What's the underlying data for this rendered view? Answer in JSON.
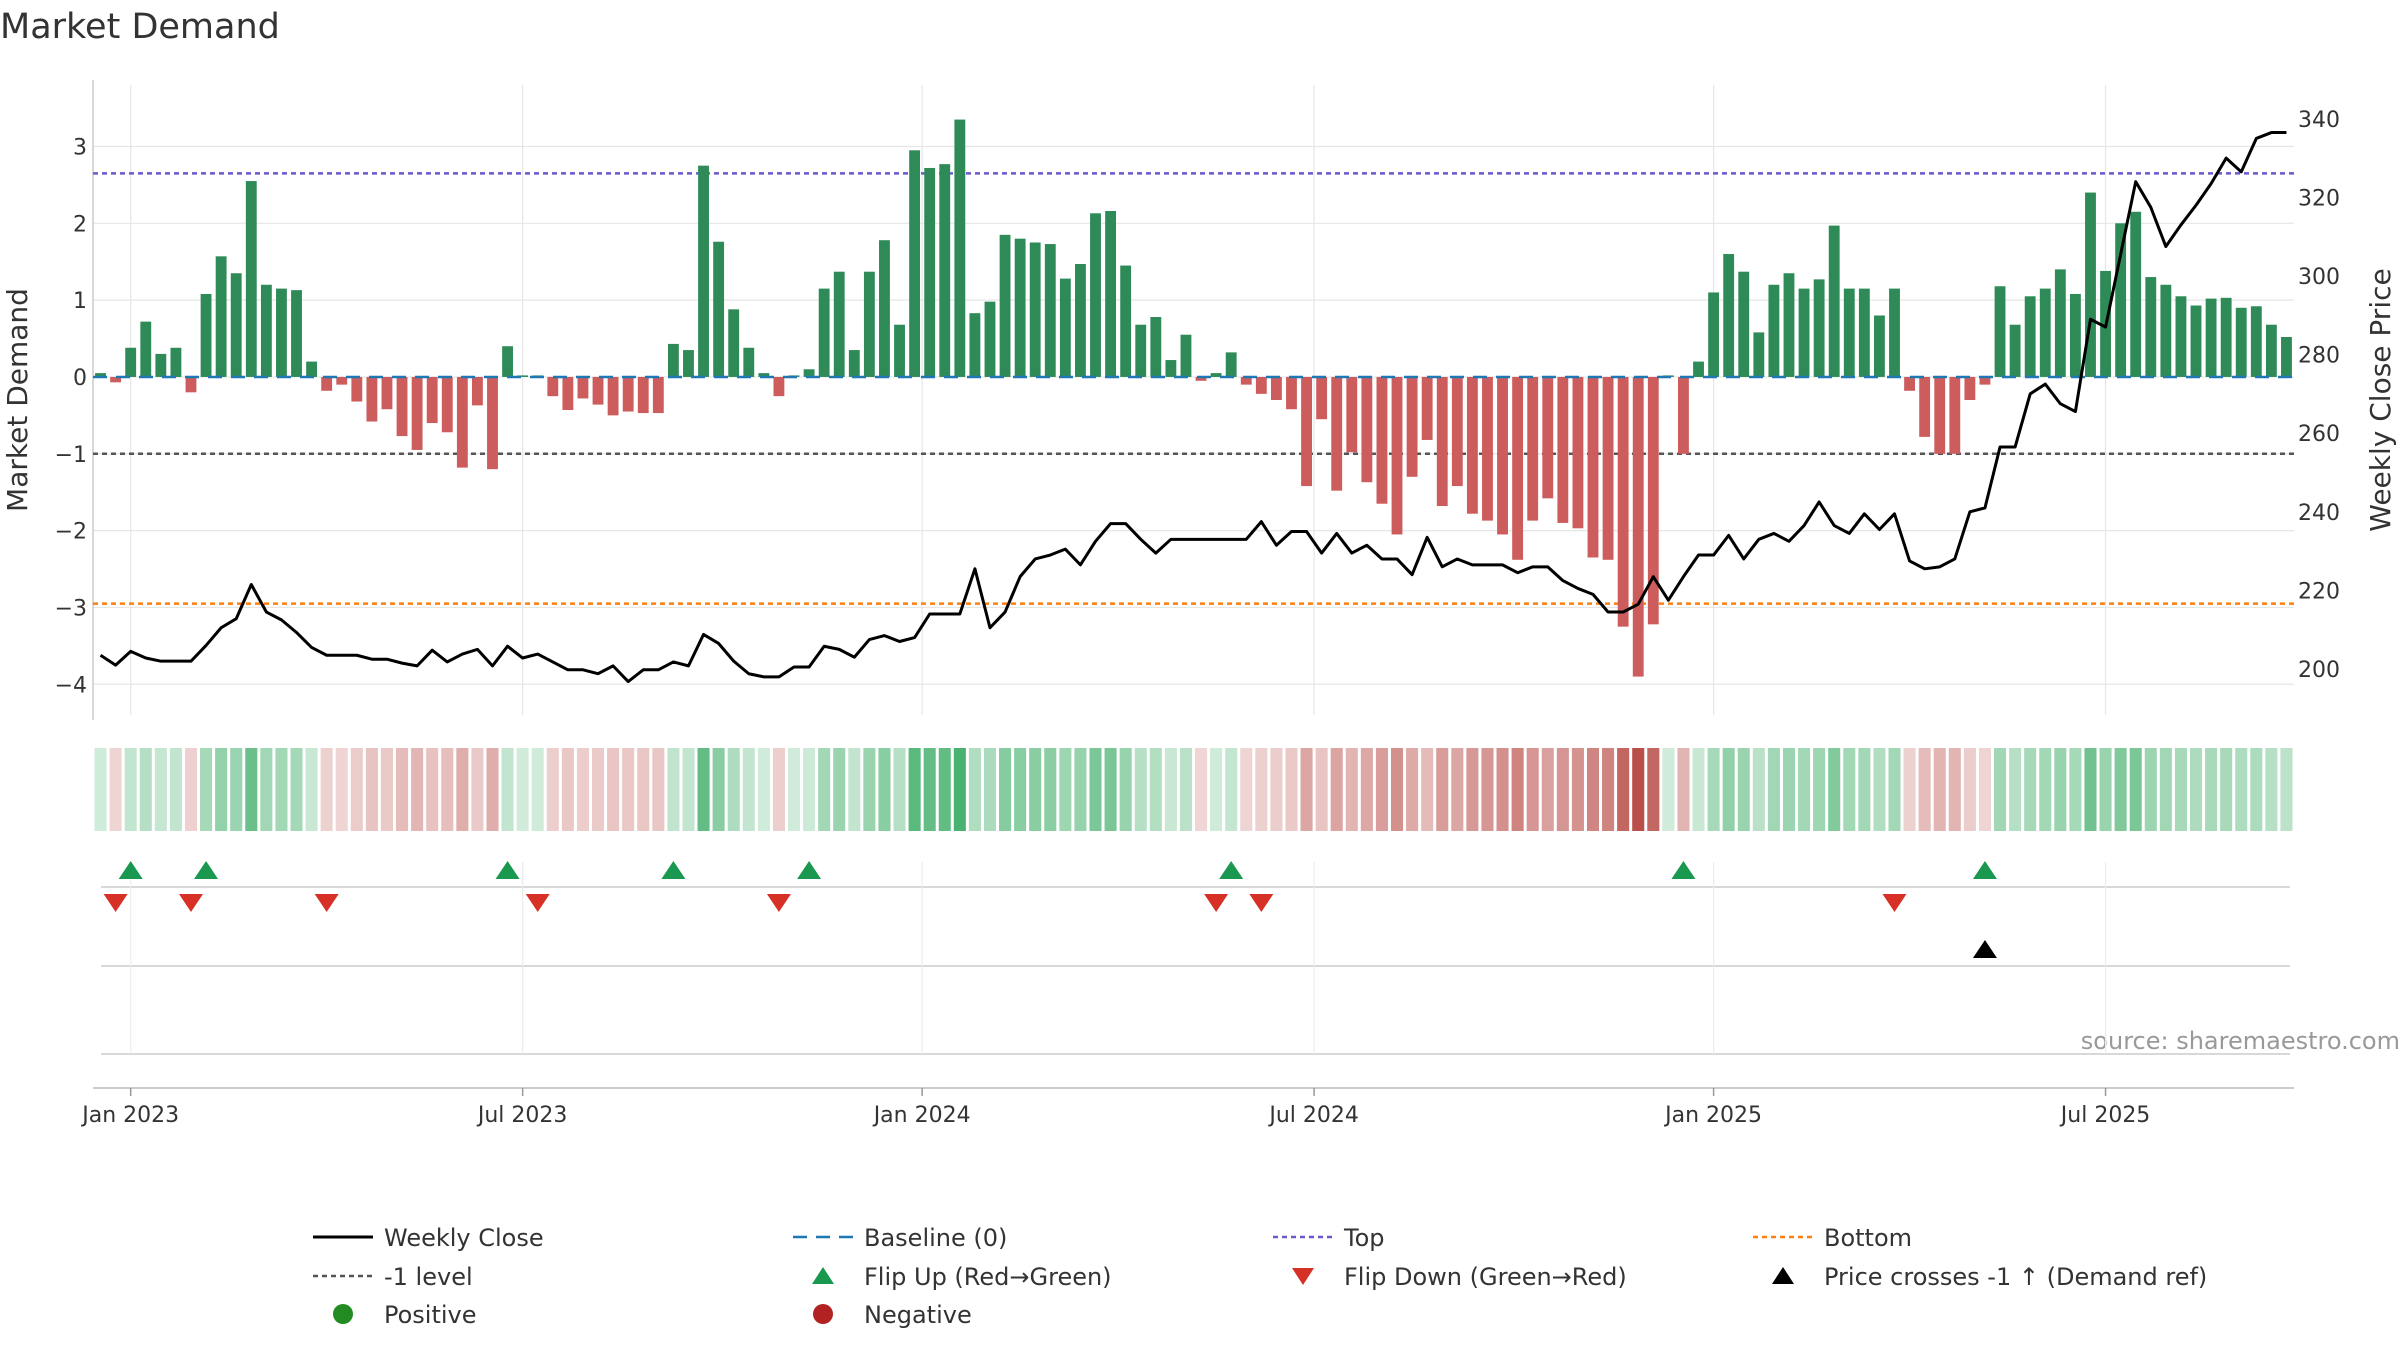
{
  "chart_data": {
    "type": "bar",
    "title": "Market Demand",
    "ylabel_left": "Market Demand",
    "ylabel_right": "Weekly Close Price",
    "source": "source: sharemaestro.com",
    "ylim_left": [
      -4.4,
      3.8
    ],
    "ylim_right": [
      188.3,
      348.6
    ],
    "yticks_left": [
      {
        "v": 3,
        "label": "3"
      },
      {
        "v": 2,
        "label": "2"
      },
      {
        "v": 1,
        "label": "1"
      },
      {
        "v": 0,
        "label": "0"
      },
      {
        "v": -1,
        "label": "−1"
      },
      {
        "v": -2,
        "label": "−2"
      },
      {
        "v": -3,
        "label": "−3"
      },
      {
        "v": -4,
        "label": "−4"
      }
    ],
    "yticks_right": [
      {
        "v": 340,
        "label": "340"
      },
      {
        "v": 320,
        "label": "320"
      },
      {
        "v": 300,
        "label": "300"
      },
      {
        "v": 280,
        "label": "280"
      },
      {
        "v": 260,
        "label": "260"
      },
      {
        "v": 240,
        "label": "240"
      },
      {
        "v": 220,
        "label": "220"
      },
      {
        "v": 200,
        "label": "200"
      }
    ],
    "xticks": [
      {
        "week": 2,
        "label": "Jan 2023"
      },
      {
        "week": 28,
        "label": "Jul 2023"
      },
      {
        "week": 54.5,
        "label": "Jan 2024"
      },
      {
        "week": 80.5,
        "label": "Jul 2024"
      },
      {
        "week": 107,
        "label": "Jan 2025"
      },
      {
        "week": 133,
        "label": "Jul 2025"
      }
    ],
    "reference_lines": {
      "top": 2.65,
      "minus_one": -1,
      "bottom": -2.95,
      "baseline": 0
    },
    "demand": [
      0.05,
      -0.07,
      0.38,
      0.72,
      0.3,
      0.38,
      -0.2,
      1.08,
      1.57,
      1.35,
      2.55,
      1.2,
      1.15,
      1.13,
      0.2,
      -0.18,
      -0.1,
      -0.32,
      -0.58,
      -0.42,
      -0.77,
      -0.95,
      -0.6,
      -0.72,
      -1.18,
      -0.37,
      -1.2,
      0.4,
      0.02,
      0.02,
      -0.25,
      -0.43,
      -0.28,
      -0.36,
      -0.5,
      -0.45,
      -0.47,
      -0.47,
      0.43,
      0.35,
      2.75,
      1.76,
      0.88,
      0.38,
      0.05,
      -0.25,
      0.02,
      0.1,
      1.15,
      1.37,
      0.35,
      1.37,
      1.78,
      0.68,
      2.95,
      2.72,
      2.77,
      3.35,
      0.83,
      0.98,
      1.85,
      1.8,
      1.75,
      1.73,
      1.28,
      1.47,
      2.13,
      2.16,
      1.45,
      0.68,
      0.78,
      0.22,
      0.55,
      -0.05,
      0.05,
      0.32,
      -0.1,
      -0.22,
      -0.3,
      -0.42,
      -1.42,
      -0.55,
      -1.48,
      -0.98,
      -1.37,
      -1.65,
      -2.05,
      -1.3,
      -0.82,
      -1.68,
      -1.42,
      -1.78,
      -1.87,
      -2.05,
      -2.38,
      -1.87,
      -1.58,
      -1.9,
      -1.97,
      -2.35,
      -2.38,
      -3.25,
      -3.9,
      -3.22,
      0.02,
      -1.0,
      0.2,
      1.1,
      1.6,
      1.37,
      0.58,
      1.2,
      1.35,
      1.15,
      1.27,
      1.97,
      1.15,
      1.15,
      0.8,
      1.15,
      -0.18,
      -0.78,
      -1.0,
      -1.0,
      -0.3,
      -0.1,
      1.18,
      0.68,
      1.05,
      1.15,
      1.4,
      1.08,
      2.4,
      1.38,
      2.0,
      2.15,
      1.3,
      1.2,
      1.05,
      0.93,
      1.02,
      1.03,
      0.9,
      0.92,
      0.68,
      0.52
    ],
    "price": [
      203.5,
      201.0,
      204.5,
      202.8,
      202.0,
      202.0,
      202.0,
      206.0,
      210.5,
      212.8,
      221.5,
      214.5,
      212.5,
      209.3,
      205.5,
      203.5,
      203.5,
      203.5,
      202.5,
      202.5,
      201.5,
      200.8,
      204.8,
      201.8,
      203.8,
      205.0,
      200.8,
      205.8,
      202.8,
      203.8,
      201.8,
      199.8,
      199.8,
      198.8,
      200.8,
      196.8,
      199.8,
      199.8,
      201.8,
      200.8,
      208.8,
      206.5,
      202.0,
      198.8,
      198.0,
      198.0,
      200.5,
      200.5,
      205.8,
      205.0,
      203.0,
      207.5,
      208.5,
      207.0,
      208.0,
      214.0,
      214.0,
      214.0,
      225.5,
      210.5,
      214.5,
      223.5,
      228.0,
      229.0,
      230.5,
      226.5,
      232.5,
      237.0,
      237.0,
      233.0,
      229.5,
      233.0,
      233.0,
      233.0,
      233.0,
      233.0,
      233.0,
      237.5,
      231.5,
      235.0,
      235.0,
      229.5,
      234.5,
      229.5,
      231.5,
      228.0,
      228.0,
      224.0,
      233.5,
      226.0,
      228.0,
      226.5,
      226.5,
      226.5,
      224.5,
      226.0,
      226.0,
      222.5,
      220.5,
      219.0,
      214.5,
      214.5,
      216.5,
      223.5,
      217.5,
      223.5,
      229.0,
      229.0,
      234.0,
      228.0,
      233.0,
      234.5,
      232.5,
      236.5,
      242.5,
      236.5,
      234.5,
      239.5,
      235.5,
      239.5,
      227.5,
      225.5,
      226.0,
      228.0,
      240.0,
      241.0,
      256.5,
      256.5,
      270.0,
      272.5,
      267.5,
      265.5,
      289.0,
      287.0,
      305.5,
      324.0,
      317.5,
      307.5,
      313.0,
      318.0,
      323.5,
      330.0,
      326.5,
      335.0,
      336.5,
      336.5
    ],
    "flip_up_weeks": [
      2,
      7,
      27,
      38,
      47,
      75,
      105,
      125
    ],
    "flip_down_weeks": [
      1,
      6,
      15,
      29,
      45,
      74,
      77,
      119
    ],
    "price_cross_weeks": [
      125
    ],
    "legend": [
      {
        "key": "close",
        "label": "Weekly Close"
      },
      {
        "key": "baseline",
        "label": "Baseline (0)"
      },
      {
        "key": "top",
        "label": "Top"
      },
      {
        "key": "bottom",
        "label": "Bottom"
      },
      {
        "key": "minus1",
        "label": "-1 level"
      },
      {
        "key": "flipup",
        "label": "Flip Up (Red→Green)"
      },
      {
        "key": "flipdown",
        "label": "Flip Down (Green→Red)"
      },
      {
        "key": "cross",
        "label": "Price crosses -1 ↑ (Demand ref)"
      },
      {
        "key": "positive",
        "label": "Positive"
      },
      {
        "key": "negative",
        "label": "Negative"
      }
    ]
  },
  "colors": {
    "positive_bar": "#2e8b57",
    "negative_bar": "#cd5c5c",
    "close_line": "#000000",
    "baseline": "#1f77b4",
    "top_line": "#6a5acd",
    "bottom_line": "#ff7f0e",
    "minus_one_line": "#555555",
    "flip_up": "#1a9850",
    "flip_down": "#d73027",
    "cross": "#000000",
    "positive_dot": "#228b22",
    "negative_dot": "#b22222",
    "grid": "#e6e6e6",
    "axis": "#cccccc"
  }
}
